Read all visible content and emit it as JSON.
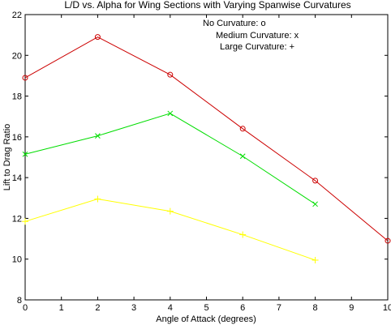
{
  "chart_data": {
    "type": "line",
    "title": "L/D vs. Alpha for Wing Sections with Varying Spanwise Curvatures",
    "xlabel": "Angle of Attack (degrees)",
    "ylabel": "Lift to Drag Ratio",
    "xlim": [
      0,
      10
    ],
    "ylim": [
      8,
      22
    ],
    "xticks": [
      0,
      1,
      2,
      3,
      4,
      5,
      6,
      7,
      8,
      9,
      10
    ],
    "yticks": [
      8,
      10,
      12,
      14,
      16,
      18,
      20,
      22
    ],
    "grid": false,
    "legend_position": "top-right",
    "legend": [
      "No Curvature: o",
      "Medium Curvature: x",
      "Large Curvature: +"
    ],
    "series": [
      {
        "marker": "o",
        "color": "#cc0000",
        "x": [
          0,
          2,
          4,
          6,
          8,
          10
        ],
        "y": [
          18.9,
          20.9,
          19.05,
          16.4,
          13.85,
          10.9
        ]
      },
      {
        "marker": "x",
        "color": "#00dd00",
        "x": [
          0,
          2,
          4,
          6,
          8
        ],
        "y": [
          15.15,
          16.05,
          17.15,
          15.05,
          12.7
        ]
      },
      {
        "marker": "+",
        "color": "#ffff00",
        "x": [
          0,
          2,
          4,
          6,
          8
        ],
        "y": [
          11.85,
          12.95,
          12.35,
          11.2,
          9.95
        ]
      }
    ]
  }
}
